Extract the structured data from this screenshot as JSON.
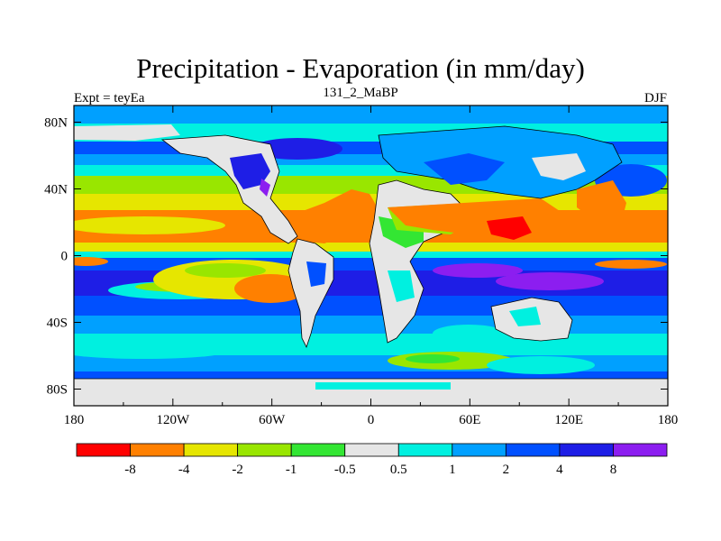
{
  "title": "Precipitation - Evaporation (in mm/day)",
  "left_string": "Expt = teyEa",
  "center_string": "131_2_MaBP",
  "right_string": "DJF",
  "map": {
    "projection": "cylindrical equidistant",
    "lon_range": [
      -180,
      180
    ],
    "lat_range": [
      -90,
      90
    ],
    "lon_ticks": [
      {
        "value": -180,
        "label": "180"
      },
      {
        "value": -120,
        "label": "120W"
      },
      {
        "value": -60,
        "label": "60W"
      },
      {
        "value": 0,
        "label": "0"
      },
      {
        "value": 60,
        "label": "60E"
      },
      {
        "value": 120,
        "label": "120E"
      },
      {
        "value": 180,
        "label": "180"
      }
    ],
    "lat_ticks": [
      {
        "value": 80,
        "label": "80N"
      },
      {
        "value": 40,
        "label": "40N"
      },
      {
        "value": 0,
        "label": "0"
      },
      {
        "value": -40,
        "label": "40S"
      },
      {
        "value": -80,
        "label": "80S"
      }
    ]
  },
  "colorbar": {
    "colors": [
      "#ff0000",
      "#ff8000",
      "#e6e600",
      "#99e600",
      "#33e633",
      "#e6e6e6",
      "#00f0e0",
      "#00a0ff",
      "#0050ff",
      "#1e1ee6",
      "#8c1ef0"
    ],
    "labels": [
      "-8",
      "-4",
      "-2",
      "-1",
      "-0.5",
      "0.5",
      "1",
      "2",
      "4",
      "8"
    ]
  },
  "palette": {
    "red": "#ff0000",
    "orange": "#ff8000",
    "yellow": "#e6e600",
    "lime": "#99e600",
    "green": "#33e633",
    "gray": "#e6e6e6",
    "cyan": "#00f0e0",
    "sky": "#00a0ff",
    "blue": "#0050ff",
    "navy": "#1e1ee6",
    "purple": "#8c1ef0"
  }
}
